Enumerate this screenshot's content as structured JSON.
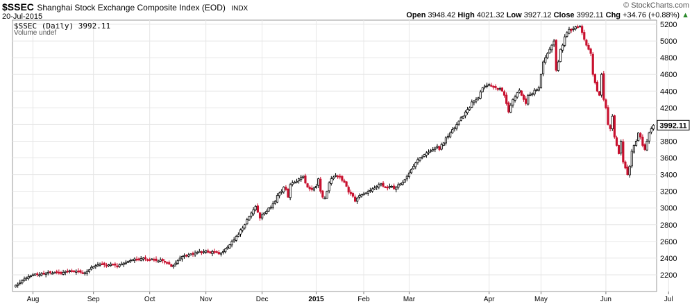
{
  "header": {
    "symbol": "$SSEC",
    "name": "Shanghai Stock Exchange Composite Index (EOD)",
    "exchange": "INDX",
    "date": "20-Jul-2015",
    "brand": "© StockCharts.com"
  },
  "ohlc": {
    "open_label": "Open",
    "open": "3948.42",
    "high_label": "High",
    "high": "4021.32",
    "low_label": "Low",
    "low": "3927.12",
    "close_label": "Close",
    "close": "3992.11",
    "chg_label": "Chg",
    "chg": "+34.76 (+0.88%)",
    "chg_arrow": "▲"
  },
  "legend": {
    "line1": "$SSEC (Daily) 3992.11",
    "line2": "Volume undef"
  },
  "colors": {
    "up": "#000000",
    "down": "#c8102e",
    "grid": "#e6e6e6",
    "axis": "#555555"
  },
  "chart_data": {
    "type": "candlestick",
    "ylim": [
      2000,
      5250
    ],
    "yticks": [
      2200,
      2400,
      2600,
      2800,
      3000,
      3200,
      3400,
      3600,
      3800,
      4000,
      4200,
      4400,
      4600,
      4800,
      5000,
      5200
    ],
    "last_value_label": "3992.11",
    "last_value": 3992.11,
    "months": [
      "Aug",
      "Sep",
      "Oct",
      "Nov",
      "Dec",
      "2015",
      "Feb",
      "Mar",
      "Apr",
      "May",
      "Jun",
      "Jul"
    ],
    "month_start_index": [
      8,
      36,
      62,
      88,
      114,
      139,
      161,
      182,
      219,
      243,
      273,
      302
    ],
    "year_label_index": 5,
    "closes": [
      2075,
      2090,
      2110,
      2130,
      2150,
      2165,
      2180,
      2190,
      2200,
      2210,
      2205,
      2200,
      2215,
      2210,
      2220,
      2230,
      2225,
      2220,
      2230,
      2235,
      2225,
      2215,
      2230,
      2240,
      2245,
      2250,
      2240,
      2235,
      2245,
      2240,
      2230,
      2220,
      2225,
      2240,
      2260,
      2290,
      2300,
      2310,
      2320,
      2330,
      2330,
      2320,
      2310,
      2320,
      2330,
      2325,
      2315,
      2300,
      2320,
      2330,
      2340,
      2350,
      2360,
      2370,
      2380,
      2390,
      2385,
      2380,
      2395,
      2400,
      2390,
      2380,
      2375,
      2390,
      2385,
      2370,
      2365,
      2380,
      2370,
      2350,
      2340,
      2330,
      2300,
      2310,
      2340,
      2370,
      2400,
      2420,
      2430,
      2430,
      2440,
      2450,
      2445,
      2460,
      2470,
      2480,
      2470,
      2480,
      2490,
      2470,
      2460,
      2480,
      2470,
      2475,
      2450,
      2460,
      2480,
      2510,
      2530,
      2560,
      2600,
      2620,
      2660,
      2680,
      2740,
      2760,
      2800,
      2860,
      2900,
      2940,
      2980,
      3020,
      2950,
      2880,
      2920,
      2940,
      2960,
      3000,
      3010,
      3050,
      3080,
      3150,
      3180,
      3200,
      3250,
      3220,
      3130,
      3280,
      3300,
      3310,
      3320,
      3350,
      3370,
      3380,
      3300,
      3250,
      3230,
      3220,
      3240,
      3260,
      3350,
      3200,
      3130,
      3120,
      3200,
      3300,
      3350,
      3370,
      3390,
      3380,
      3370,
      3330,
      3310,
      3260,
      3190,
      3170,
      3140,
      3080,
      3120,
      3150,
      3160,
      3170,
      3180,
      3200,
      3210,
      3230,
      3240,
      3260,
      3280,
      3290,
      3260,
      3250,
      3240,
      3260,
      3260,
      3230,
      3250,
      3280,
      3290,
      3310,
      3340,
      3380,
      3420,
      3460,
      3500,
      3540,
      3580,
      3600,
      3610,
      3640,
      3660,
      3670,
      3690,
      3700,
      3720,
      3740,
      3700,
      3760,
      3780,
      3840,
      3860,
      3900,
      3940,
      3960,
      4000,
      4040,
      4080,
      4100,
      4150,
      4180,
      4200,
      4270,
      4280,
      4300,
      4320,
      4390,
      4440,
      4460,
      4470,
      4480,
      4460,
      4450,
      4440,
      4420,
      4430,
      4400,
      4350,
      4250,
      4150,
      4230,
      4300,
      4330,
      4380,
      4410,
      4350,
      4300,
      4250,
      4350,
      4360,
      4370,
      4410,
      4420,
      4440,
      4600,
      4750,
      4800,
      4850,
      4900,
      4950,
      5000,
      4650,
      4750,
      4900,
      4950,
      5050,
      5100,
      5140,
      5130,
      5150,
      5170,
      5165,
      5180,
      5100,
      5020,
      4950,
      4900,
      4850,
      4600,
      4500,
      4400,
      4350,
      4600,
      4300,
      4200,
      4000,
      3950,
      4100,
      3850,
      3750,
      3650,
      3800,
      3550,
      3480,
      3400,
      3500,
      3680,
      3750,
      3800,
      3900,
      3850,
      3750,
      3700,
      3800,
      3900,
      3950,
      3992
    ]
  }
}
